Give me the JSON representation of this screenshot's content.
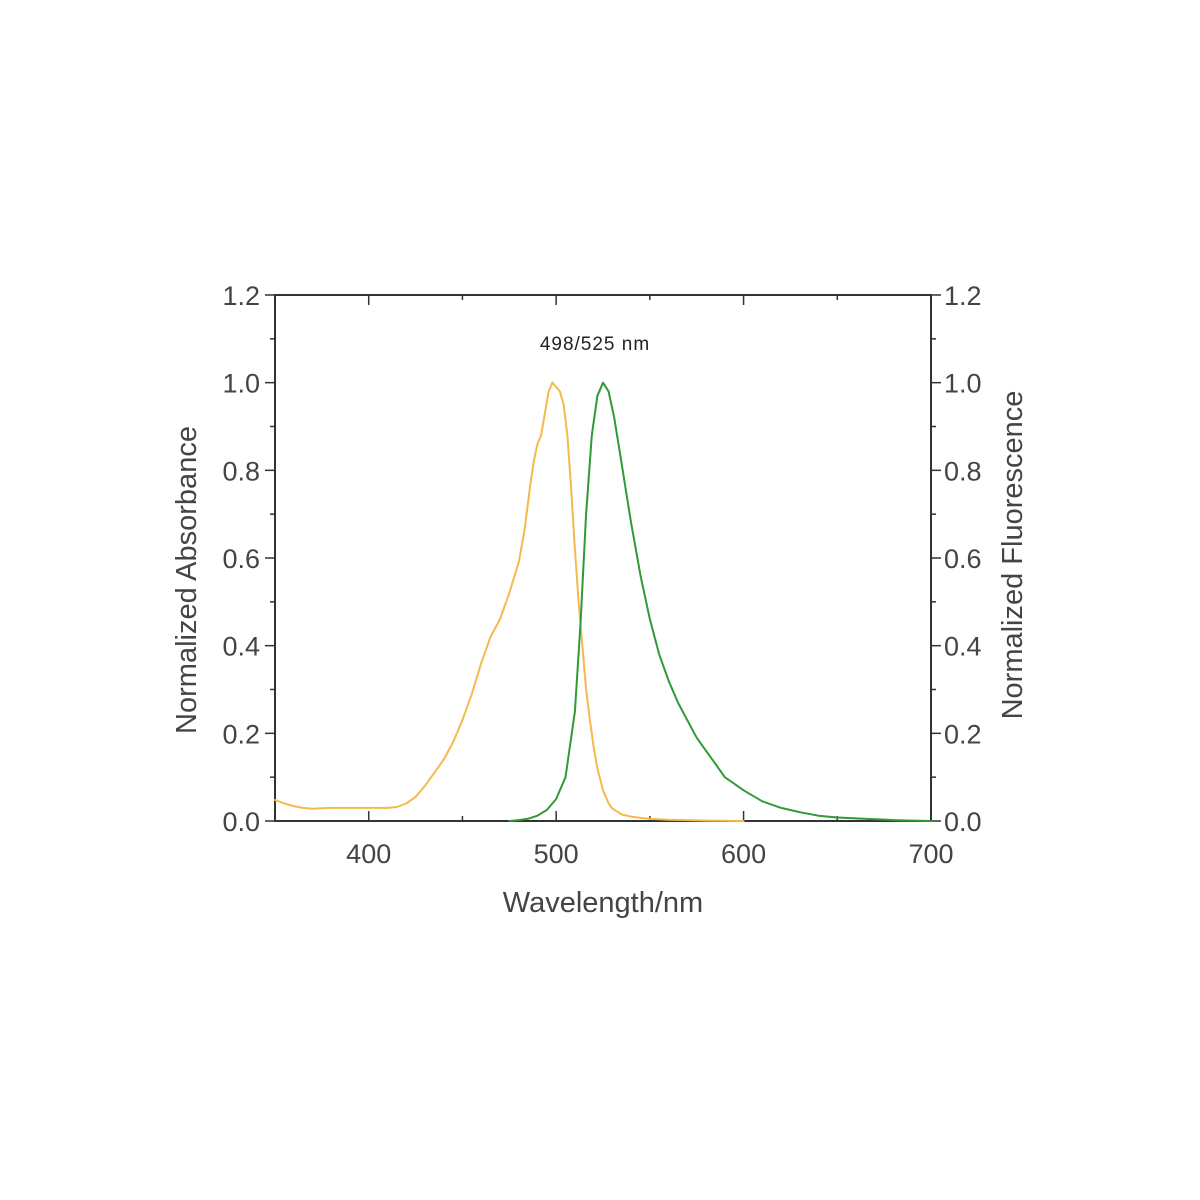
{
  "chart_data": {
    "type": "line",
    "title": "",
    "annotation": "498/525 nm",
    "xlabel": "Wavelength/nm",
    "ylabel_left": "Normalized Absorbance",
    "ylabel_right": "Normalized Fluorescence",
    "xlim": [
      350,
      700
    ],
    "ylim": [
      0,
      1.2
    ],
    "x_ticks": [
      "400",
      "500",
      "600",
      "700"
    ],
    "x_tick_values": [
      400,
      500,
      600,
      700
    ],
    "y_ticks": [
      "0.0",
      "0.2",
      "0.4",
      "0.6",
      "0.8",
      "1.0",
      "1.2"
    ],
    "y_tick_values": [
      0,
      0.2,
      0.4,
      0.6,
      0.8,
      1.0,
      1.2
    ],
    "grid": false,
    "series": [
      {
        "color": "#f5b94c",
        "axis": "left",
        "x": [
          350,
          355,
          360,
          365,
          370,
          375,
          380,
          385,
          390,
          395,
          400,
          405,
          410,
          415,
          420,
          425,
          430,
          435,
          440,
          445,
          450,
          455,
          460,
          465,
          470,
          475,
          480,
          483,
          486,
          488,
          490,
          492,
          494,
          496,
          498,
          500,
          502,
          504,
          506,
          508,
          510,
          512,
          514,
          516,
          518,
          520,
          522,
          525,
          528,
          530,
          535,
          540,
          545,
          550,
          560,
          570,
          580,
          600
        ],
        "y": [
          0.048,
          0.04,
          0.034,
          0.03,
          0.028,
          0.029,
          0.03,
          0.03,
          0.03,
          0.03,
          0.03,
          0.03,
          0.03,
          0.032,
          0.04,
          0.055,
          0.08,
          0.11,
          0.14,
          0.18,
          0.23,
          0.29,
          0.36,
          0.42,
          0.46,
          0.52,
          0.59,
          0.66,
          0.76,
          0.82,
          0.86,
          0.88,
          0.93,
          0.98,
          1.0,
          0.99,
          0.98,
          0.95,
          0.88,
          0.76,
          0.62,
          0.5,
          0.4,
          0.3,
          0.23,
          0.17,
          0.12,
          0.07,
          0.04,
          0.028,
          0.015,
          0.01,
          0.007,
          0.005,
          0.003,
          0.002,
          0.001,
          0.0
        ]
      },
      {
        "color": "#2e9b35",
        "axis": "right",
        "x": [
          475,
          480,
          485,
          490,
          495,
          500,
          505,
          510,
          513,
          516,
          519,
          522,
          525,
          528,
          531,
          534,
          537,
          540,
          545,
          550,
          555,
          560,
          565,
          570,
          575,
          580,
          585,
          590,
          595,
          600,
          610,
          620,
          630,
          640,
          650,
          660,
          670,
          680,
          690,
          700
        ],
        "y": [
          0.0,
          0.002,
          0.005,
          0.012,
          0.025,
          0.05,
          0.1,
          0.25,
          0.45,
          0.7,
          0.88,
          0.97,
          1.0,
          0.98,
          0.92,
          0.84,
          0.76,
          0.68,
          0.56,
          0.46,
          0.38,
          0.32,
          0.27,
          0.23,
          0.19,
          0.16,
          0.13,
          0.1,
          0.085,
          0.07,
          0.045,
          0.03,
          0.02,
          0.012,
          0.008,
          0.006,
          0.004,
          0.002,
          0.001,
          0.0
        ]
      }
    ]
  }
}
